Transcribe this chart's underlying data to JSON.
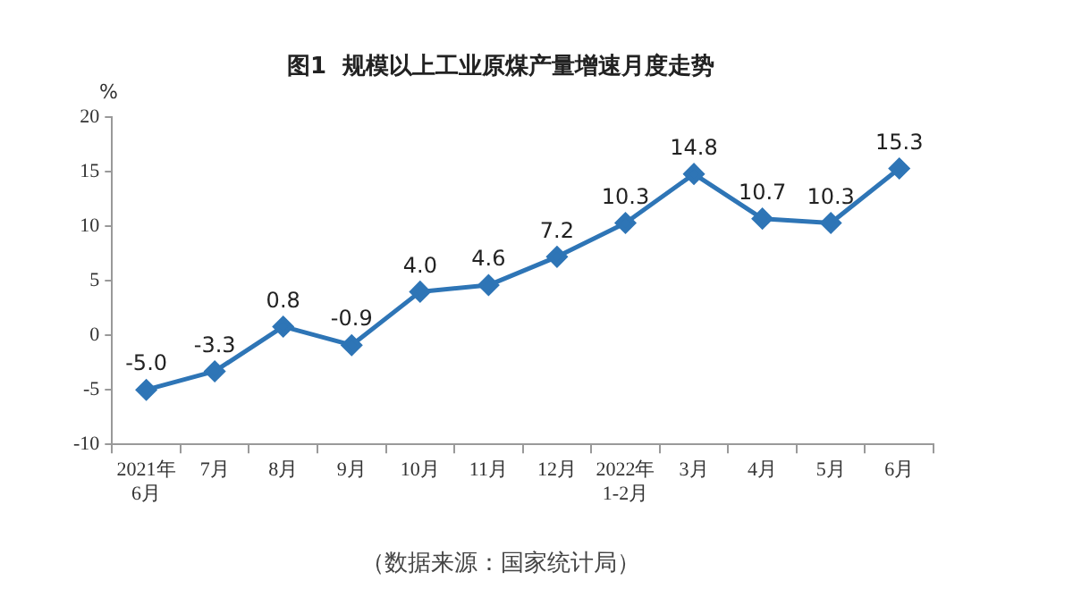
{
  "chart_data": {
    "type": "line",
    "title": "图1  规模以上工业原煤产量增速月度走势",
    "ylabel": "%",
    "categories": [
      "2021年\n6月",
      "7月",
      "8月",
      "9月",
      "10月",
      "11月",
      "12月",
      "2022年\n1-2月",
      "3月",
      "4月",
      "5月",
      "6月"
    ],
    "series": [
      {
        "color": "#2e75b6",
        "values": [
          -5.0,
          -3.3,
          0.8,
          -0.9,
          4.0,
          4.6,
          7.2,
          10.3,
          14.8,
          10.7,
          10.3,
          15.3
        ],
        "value_labels": [
          "-5.0",
          "-3.3",
          "0.8",
          "-0.9",
          "4.0",
          "4.6",
          "7.2",
          "10.3",
          "14.8",
          "10.7",
          "10.3",
          "15.3"
        ]
      }
    ],
    "ylim": [
      -10,
      20
    ],
    "yticks": [
      -10,
      -5,
      0,
      5,
      10,
      15,
      20
    ],
    "grid": false,
    "legend": false,
    "marker": "diamond",
    "line_style": "solid",
    "annotations": [
      "（数据来源：国家统计局）"
    ]
  }
}
